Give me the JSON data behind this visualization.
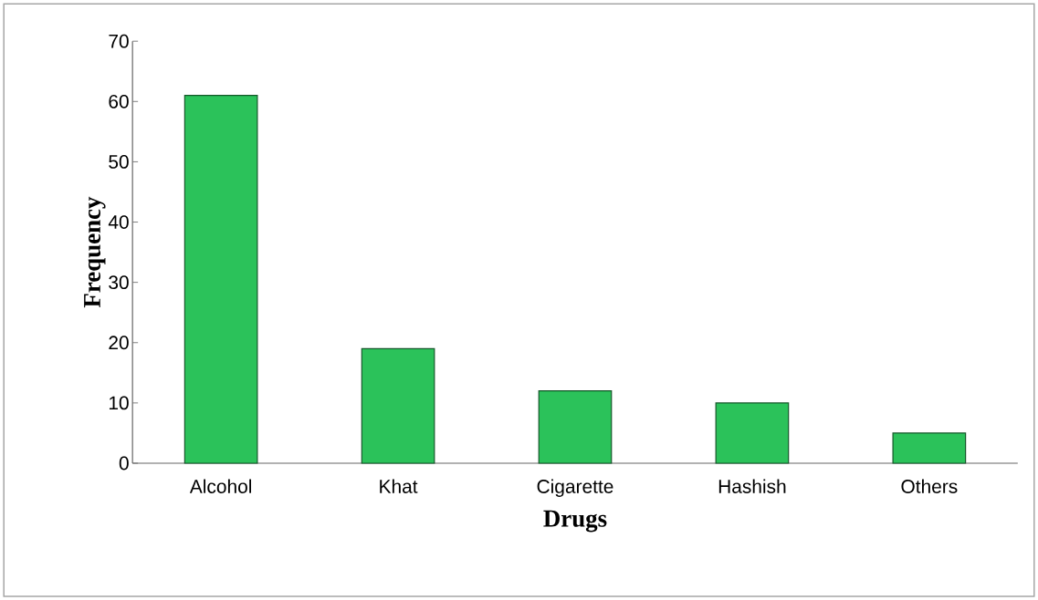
{
  "chart_data": {
    "type": "bar",
    "xlabel": "Drugs",
    "ylabel": "Frequency",
    "categories": [
      "Alcohol",
      "Khat",
      "Cigarette",
      "Hashish",
      "Others"
    ],
    "values": [
      61,
      19,
      12,
      10,
      5
    ],
    "color": "#2bc25a",
    "ylim": [
      0,
      70
    ],
    "yticks": [
      0,
      10,
      20,
      30,
      40,
      50,
      60,
      70
    ],
    "grid": false
  }
}
